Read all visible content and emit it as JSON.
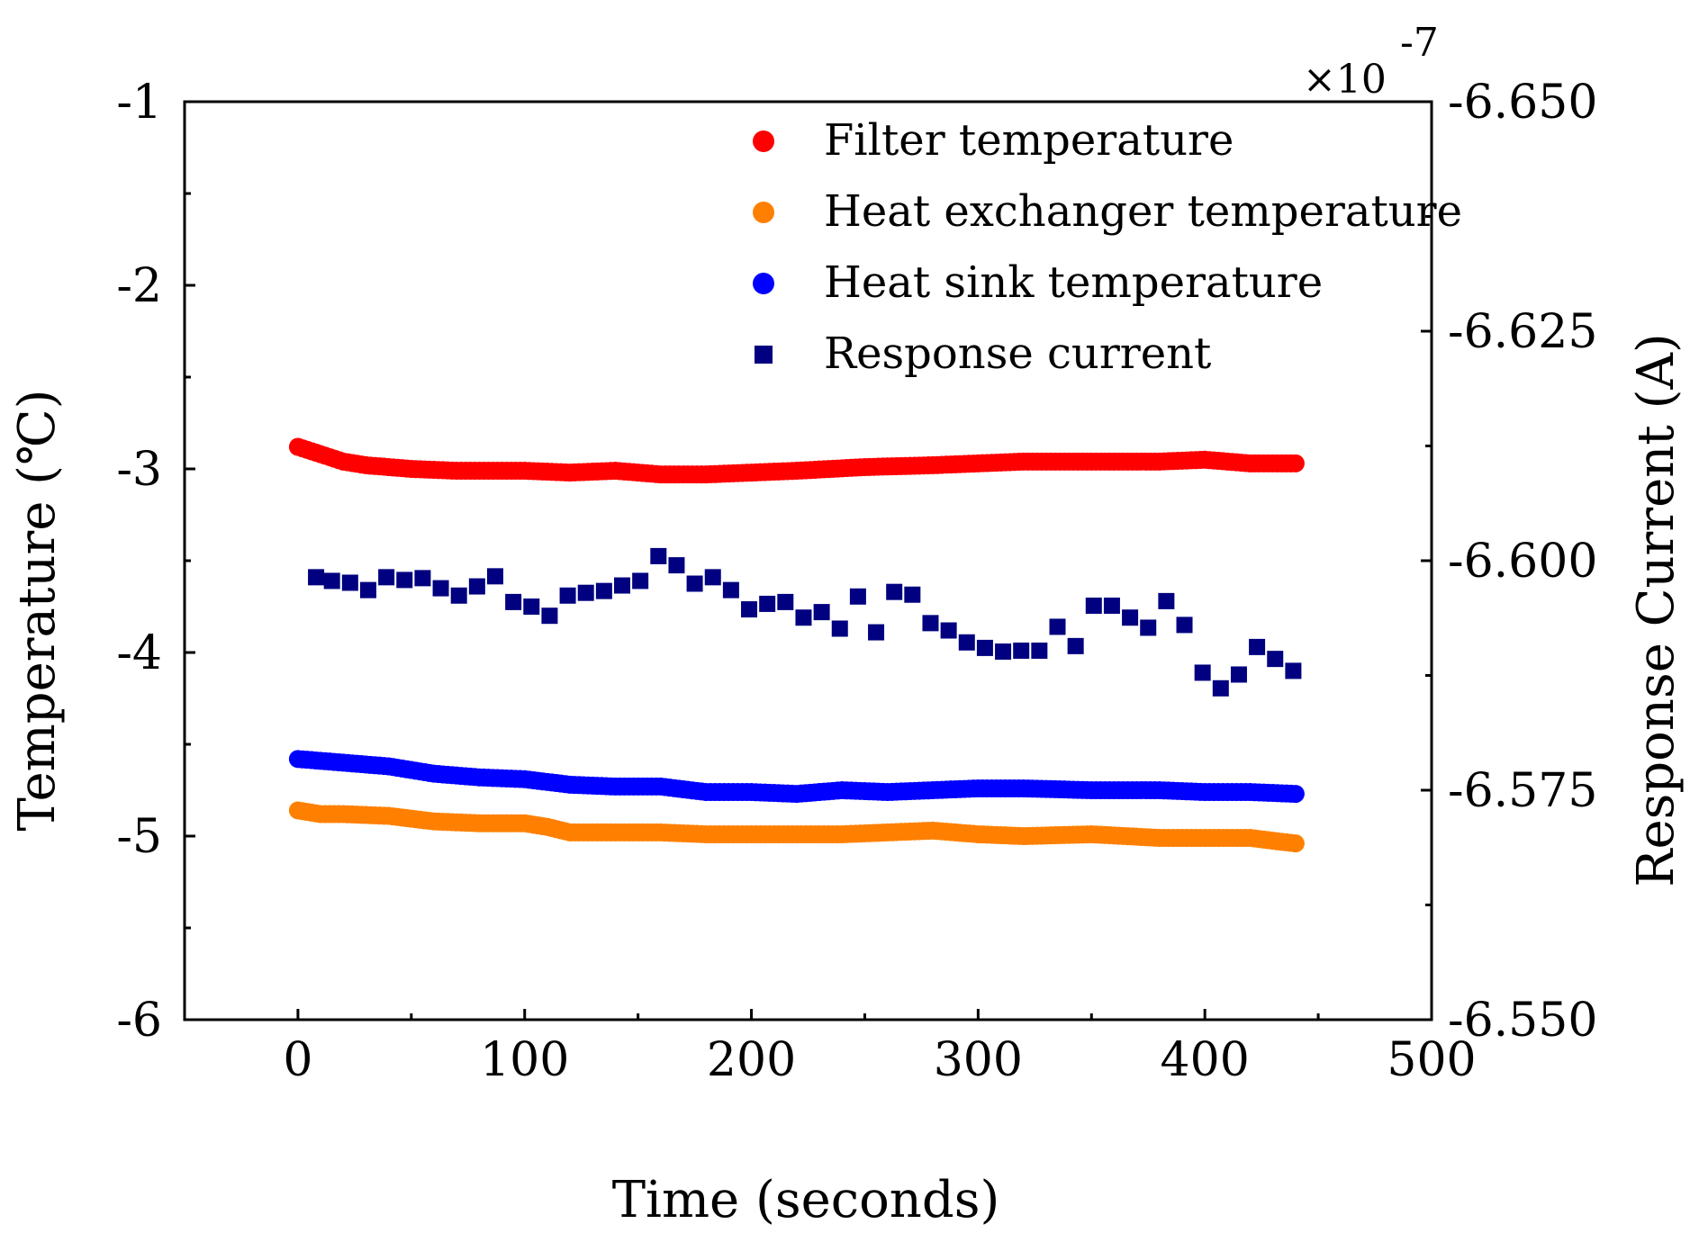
{
  "chart_data": {
    "type": "scatter",
    "x_axis": {
      "label": "Time (seconds)",
      "range": [
        -50,
        500
      ],
      "ticks": [
        0,
        100,
        200,
        300,
        400,
        500
      ],
      "tick_labels": [
        "0",
        "100",
        "200",
        "300",
        "400",
        "500"
      ]
    },
    "y_axis_left": {
      "label": "Temperature (℃)",
      "range": [
        -6,
        -1
      ],
      "ticks": [
        -6,
        -5,
        -4,
        -3,
        -2,
        -1
      ],
      "tick_labels": [
        "-6",
        "-5",
        "-4",
        "-3",
        "-2",
        "-1"
      ],
      "minor_step": 0.5
    },
    "y_axis_right": {
      "label": "Response Current (A)",
      "range": [
        -6.55,
        -6.65
      ],
      "ticks": [
        -6.55,
        -6.575,
        -6.6,
        -6.625,
        -6.65
      ],
      "tick_labels": [
        "-6.550",
        "-6.575",
        "-6.600",
        "-6.625",
        "-6.650"
      ],
      "minor_step": 0.0125,
      "multiplier_base": "×10",
      "multiplier_exponent": "-7"
    },
    "legend_position": "top-right",
    "series": [
      {
        "name": "Filter temperature",
        "axis": "left",
        "marker": "circle",
        "color": "#ff0000",
        "x": [
          0,
          10,
          20,
          30,
          50,
          70,
          100,
          120,
          140,
          160,
          180,
          200,
          220,
          250,
          280,
          300,
          320,
          350,
          380,
          400,
          420,
          440
        ],
        "y": [
          -2.88,
          -2.92,
          -2.96,
          -2.98,
          -3.0,
          -3.01,
          -3.01,
          -3.02,
          -3.01,
          -3.03,
          -3.03,
          -3.02,
          -3.01,
          -2.99,
          -2.98,
          -2.97,
          -2.96,
          -2.96,
          -2.96,
          -2.95,
          -2.97,
          -2.97
        ]
      },
      {
        "name": "Heat exchanger temperature",
        "axis": "left",
        "marker": "circle",
        "color": "#ff8000",
        "x": [
          0,
          10,
          20,
          40,
          60,
          80,
          100,
          110,
          120,
          140,
          160,
          180,
          200,
          220,
          240,
          260,
          280,
          300,
          320,
          350,
          380,
          400,
          420,
          440
        ],
        "y": [
          -4.86,
          -4.88,
          -4.88,
          -4.89,
          -4.92,
          -4.93,
          -4.93,
          -4.95,
          -4.98,
          -4.98,
          -4.98,
          -4.99,
          -4.99,
          -4.99,
          -4.99,
          -4.98,
          -4.97,
          -4.99,
          -5.0,
          -4.99,
          -5.01,
          -5.01,
          -5.01,
          -5.04
        ]
      },
      {
        "name": "Heat sink temperature",
        "axis": "left",
        "marker": "circle",
        "color": "#0000ff",
        "x": [
          0,
          20,
          40,
          60,
          80,
          100,
          120,
          140,
          160,
          180,
          200,
          220,
          240,
          260,
          280,
          300,
          320,
          350,
          380,
          400,
          420,
          440
        ],
        "y": [
          -4.58,
          -4.6,
          -4.62,
          -4.66,
          -4.68,
          -4.69,
          -4.72,
          -4.73,
          -4.73,
          -4.76,
          -4.76,
          -4.77,
          -4.75,
          -4.76,
          -4.75,
          -4.74,
          -4.74,
          -4.75,
          -4.75,
          -4.76,
          -4.76,
          -4.77
        ]
      },
      {
        "name": "Response current",
        "axis": "right",
        "marker": "square",
        "color": "#000080",
        "x": [
          8,
          15,
          23,
          31,
          39,
          47,
          55,
          63,
          71,
          79,
          87,
          95,
          103,
          111,
          119,
          127,
          135,
          143,
          151,
          159,
          167,
          175,
          183,
          191,
          199,
          207,
          215,
          223,
          231,
          239,
          247,
          255,
          263,
          271,
          279,
          287,
          295,
          303,
          311,
          319,
          327,
          335,
          343,
          351,
          359,
          367,
          375,
          383,
          391,
          399,
          407,
          415,
          423,
          431,
          439
        ],
        "y": [
          -6.5982,
          -6.5978,
          -6.5976,
          -6.5968,
          -6.5982,
          -6.5979,
          -6.5981,
          -6.597,
          -6.5962,
          -6.5972,
          -6.5983,
          -6.5955,
          -6.595,
          -6.594,
          -6.5962,
          -6.5965,
          -6.5967,
          -6.5973,
          -6.5978,
          -6.6005,
          -6.5995,
          -6.5975,
          -6.5982,
          -6.5968,
          -6.5947,
          -6.5953,
          -6.5955,
          -6.5938,
          -6.5944,
          -6.5926,
          -6.5961,
          -6.5922,
          -6.5966,
          -6.5963,
          -6.5932,
          -6.5924,
          -6.5911,
          -6.5905,
          -6.5901,
          -6.5902,
          -6.5902,
          -6.5928,
          -6.5907,
          -6.5951,
          -6.5951,
          -6.5938,
          -6.5927,
          -6.5956,
          -6.593,
          -6.5878,
          -6.5861,
          -6.5876,
          -6.5906,
          -6.5893,
          -6.588
        ]
      }
    ]
  }
}
